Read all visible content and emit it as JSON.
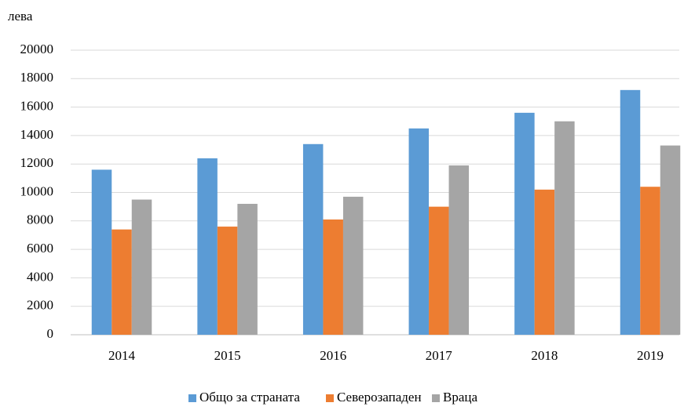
{
  "chart_data": {
    "type": "bar",
    "y_label": "лева",
    "categories": [
      "2014",
      "2015",
      "2016",
      "2017",
      "2018",
      "2019"
    ],
    "series": [
      {
        "name": "Общо за страната",
        "color": "#5b9bd5",
        "values": [
          11600,
          12400,
          13400,
          14500,
          15600,
          17200
        ]
      },
      {
        "name": "Северозападен",
        "color": "#ed7d31",
        "values": [
          7400,
          7600,
          8100,
          9000,
          10200,
          10400
        ]
      },
      {
        "name": "Враца",
        "color": "#a5a5a5",
        "values": [
          9500,
          9200,
          9700,
          11900,
          15000,
          13300
        ]
      }
    ],
    "ylim": [
      0,
      20000
    ],
    "yticks": [
      0,
      2000,
      4000,
      6000,
      8000,
      10000,
      12000,
      14000,
      16000,
      18000,
      20000
    ],
    "grid": true,
    "legend": "bottom"
  }
}
